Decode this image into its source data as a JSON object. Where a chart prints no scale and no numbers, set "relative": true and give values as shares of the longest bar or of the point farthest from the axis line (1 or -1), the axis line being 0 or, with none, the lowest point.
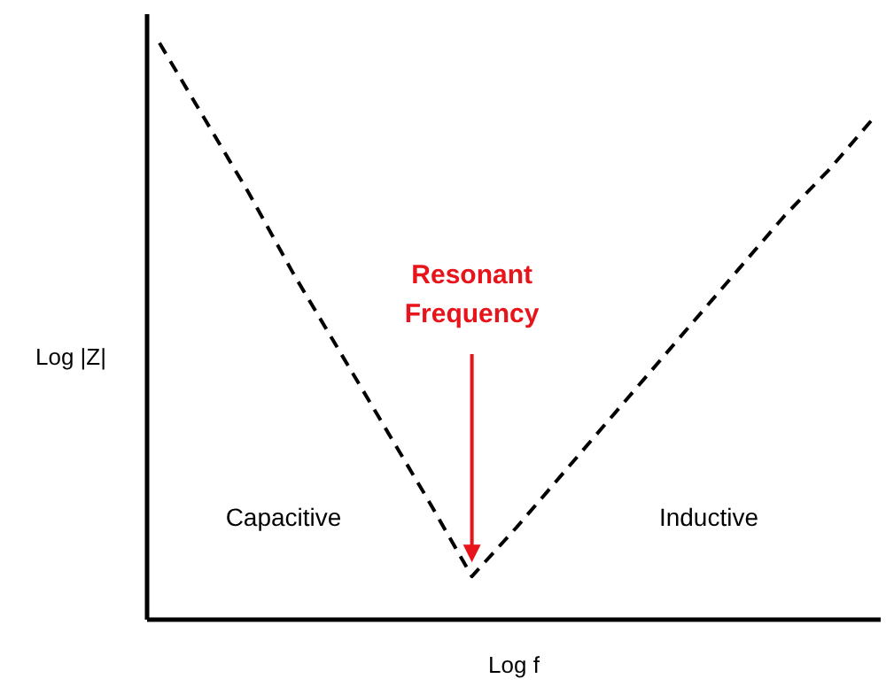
{
  "chart_data": {
    "type": "line",
    "relative": true,
    "xlabel": "Log f",
    "ylabel": "Log |Z|",
    "categories": [
      null,
      null,
      null,
      null,
      null,
      null,
      null,
      null,
      null,
      null,
      null,
      null,
      null,
      null,
      null,
      null,
      null
    ],
    "line_style": "dashed",
    "marker": "none",
    "series": [
      {
        "color": "#000000",
        "values": [
          1,
          0.87,
          0.74,
          0.6,
          0.47,
          0.34,
          0.21,
          0.075,
          0.16,
          0.25,
          0.34,
          0.43,
          0.52,
          0.61,
          0.7,
          0.78,
          0.87
        ]
      }
    ],
    "annotations": [
      "Resonant Frequency",
      "Capacitive",
      "Inductive"
    ]
  }
}
